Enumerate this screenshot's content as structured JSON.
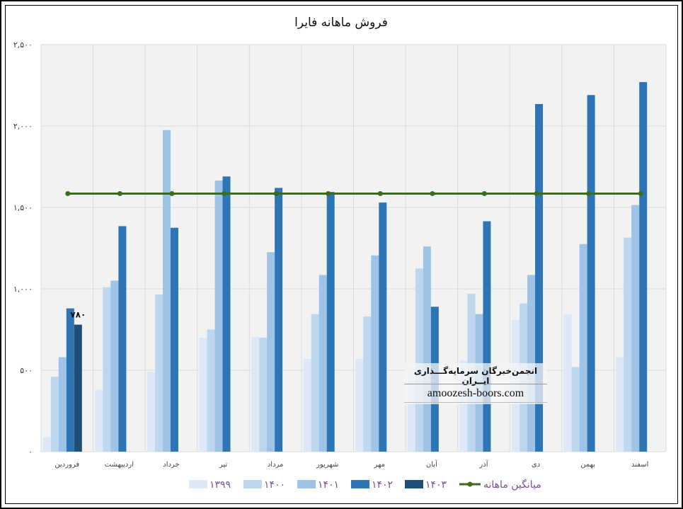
{
  "chart_data": {
    "type": "bar",
    "title": "فروش ماهانه فایرا",
    "categories": [
      "فروردین",
      "اردیبهشت",
      "خرداد",
      "تیر",
      "مرداد",
      "شهریور",
      "مهر",
      "آبان",
      "آذر",
      "دی",
      "بهمن",
      "اسفند"
    ],
    "series": [
      {
        "name": "۱۳۹۹",
        "color": "#dce8f5",
        "values": [
          90,
          380,
          490,
          700,
          705,
          570,
          570,
          520,
          560,
          810,
          845,
          580
        ]
      },
      {
        "name": "۱۴۰۰",
        "color": "#bdd7ee",
        "values": [
          460,
          1010,
          965,
          750,
          700,
          845,
          830,
          1125,
          970,
          910,
          520,
          1315
        ]
      },
      {
        "name": "۱۴۰۱",
        "color": "#9dc3e6",
        "values": [
          580,
          1050,
          1975,
          1665,
          1225,
          1085,
          1205,
          1260,
          845,
          1085,
          1275,
          1515
        ]
      },
      {
        "name": "۱۴۰۲",
        "color": "#2e75b6",
        "values": [
          880,
          1385,
          1375,
          1690,
          1620,
          1595,
          1530,
          890,
          1415,
          2135,
          2190,
          2270
        ]
      },
      {
        "name": "۱۴۰۳",
        "color": "#1f4e79",
        "values": [
          780,
          null,
          null,
          null,
          null,
          null,
          null,
          null,
          null,
          null,
          null,
          null
        ]
      }
    ],
    "average": {
      "name": "میانگین ماهانه",
      "color": "#3a6b1e",
      "value": 1585
    },
    "data_labels": [
      {
        "series": "۱۴۰۳",
        "category": "فروردین",
        "text": "۷۸۰"
      }
    ],
    "ylim": [
      0,
      2500
    ],
    "yticks": [
      0,
      500,
      1000,
      1500,
      2000,
      2500
    ],
    "ytick_labels": [
      "۰",
      "۵۰۰",
      "۱,۰۰۰",
      "۱,۵۰۰",
      "۲,۰۰۰",
      "۲,۵۰۰"
    ],
    "grid": true,
    "legend_position": "bottom"
  },
  "watermark": {
    "line1": "انجمن‌خبرگان سرمایه‌گـــذاری ایــران",
    "line2": "amoozesh-boors.com"
  }
}
